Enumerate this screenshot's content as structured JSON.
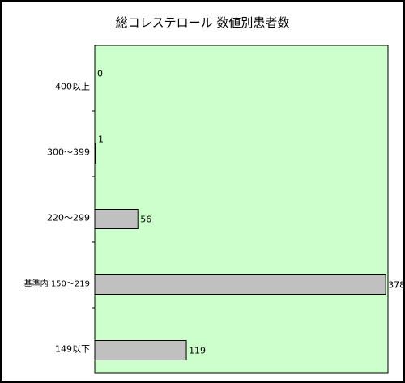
{
  "chart_data": {
    "type": "bar",
    "orientation": "horizontal",
    "title": "総コレステロール 数値別患者数",
    "categories": [
      "400以上",
      "300〜399",
      "220〜299",
      "基準内 150〜219",
      "149以下"
    ],
    "values": [
      0,
      1,
      56,
      378,
      119
    ],
    "data_labels": [
      "0",
      "1",
      "56",
      "378",
      "119"
    ],
    "xlim": [
      0,
      400
    ],
    "grid": false,
    "legend": "none",
    "plot_background": "#ccffcc",
    "bar_color": "#c0c0c0",
    "bar_edge_color": "#000000"
  }
}
